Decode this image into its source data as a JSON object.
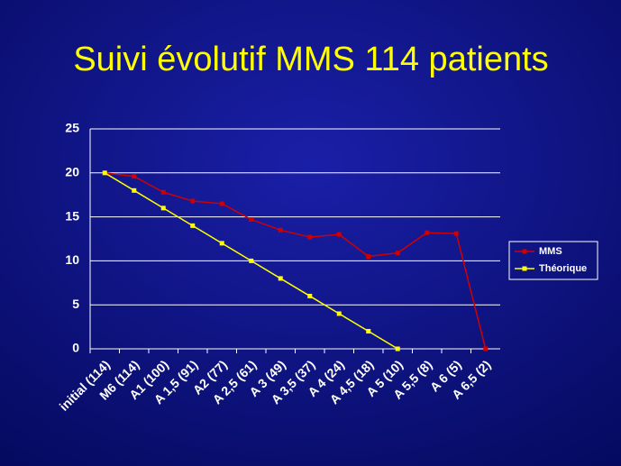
{
  "chart_data": {
    "type": "line",
    "title": "Suivi évolutif MMS 114 patients",
    "categories": [
      "initial (114)",
      "M6 (114)",
      "A1 (100)",
      "A 1,5 (91)",
      "A2 (77)",
      "A 2,5 (61)",
      "A 3 (49)",
      "A 3,5 (37)",
      "A 4 (24)",
      "A 4,5 (18)",
      "A 5 (10)",
      "A 5,5 (8)",
      "A 6 (5)",
      "A 6,5 (2)"
    ],
    "series": [
      {
        "name": "MMS",
        "color": "#d00000",
        "values": [
          20,
          19.6,
          17.8,
          16.8,
          16.5,
          14.7,
          13.5,
          12.7,
          13.0,
          10.5,
          10.9,
          13.2,
          13.1,
          0
        ]
      },
      {
        "name": "Théorique",
        "color": "#ffff00",
        "values": [
          20,
          18,
          16,
          14,
          12,
          10,
          8,
          6,
          4,
          2,
          0,
          null,
          null,
          null
        ]
      }
    ],
    "ylim": [
      0,
      25
    ],
    "yticks": [
      0,
      5,
      10,
      15,
      20,
      25
    ],
    "grid": true,
    "legend": "right"
  }
}
